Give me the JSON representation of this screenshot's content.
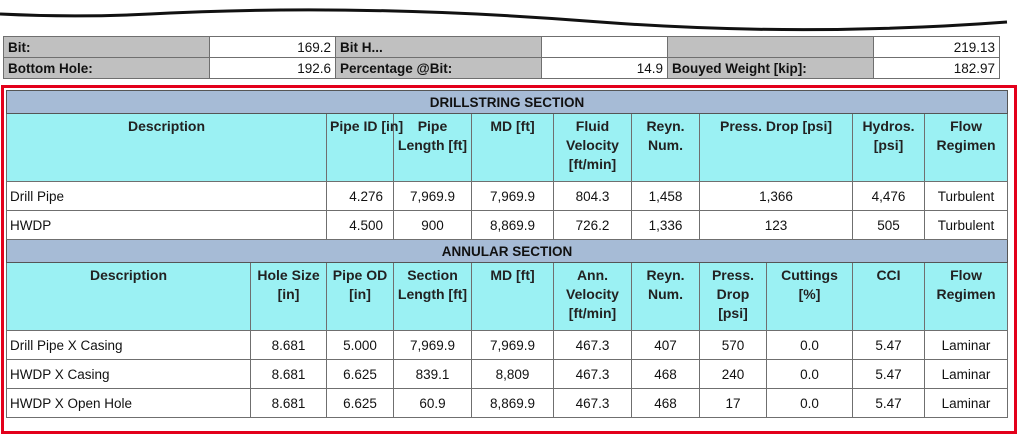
{
  "top_table": {
    "rows": [
      {
        "label": "Bit:",
        "value": "169.2",
        "label2": "Bit H...",
        "value2": "",
        "label3": "",
        "value3": "219.13"
      },
      {
        "label": "Bottom Hole:",
        "value": "192.6",
        "label2": "Percentage @Bit:",
        "value2": "14.9",
        "label3": "Bouyed Weight  [kip]:",
        "value3": "182.97"
      }
    ]
  },
  "drillstring": {
    "title": "DRILLSTRING SECTION",
    "headers": [
      "Description",
      "Pipe ID [in]",
      "Pipe Length [ft]",
      "MD [ft]",
      "Fluid Velocity [ft/min]",
      "Reyn. Num.",
      "Press. Drop [psi]",
      "Hydros. [psi]",
      "Flow Regimen"
    ],
    "rows": [
      [
        "Drill Pipe",
        "4.276",
        "7,969.9",
        "7,969.9",
        "804.3",
        "1,458",
        "1,366",
        "4,476",
        "Turbulent"
      ],
      [
        "HWDP",
        "4.500",
        "900",
        "8,869.9",
        "726.2",
        "1,336",
        "123",
        "505",
        "Turbulent"
      ]
    ]
  },
  "annular": {
    "title": "ANNULAR SECTION",
    "headers": [
      "Description",
      "Hole Size [in]",
      "Pipe OD [in]",
      "Section Length [ft]",
      "MD [ft]",
      "Ann. Velocity [ft/min]",
      "Reyn. Num.",
      "Press. Drop [psi]",
      "Cuttings [%]",
      "CCI",
      "Flow Regimen"
    ],
    "rows": [
      [
        "Drill Pipe X Casing",
        "8.681",
        "5.000",
        "7,969.9",
        "7,969.9",
        "467.3",
        "407",
        "570",
        "0.0",
        "5.47",
        "Laminar"
      ],
      [
        "HWDP X Casing",
        "8.681",
        "6.625",
        "839.1",
        "8,809",
        "467.3",
        "468",
        "240",
        "0.0",
        "5.47",
        "Laminar"
      ],
      [
        "HWDP X Open Hole",
        "8.681",
        "6.625",
        "60.9",
        "8,869.9",
        "467.3",
        "468",
        "17",
        "0.0",
        "5.47",
        "Laminar"
      ]
    ]
  }
}
